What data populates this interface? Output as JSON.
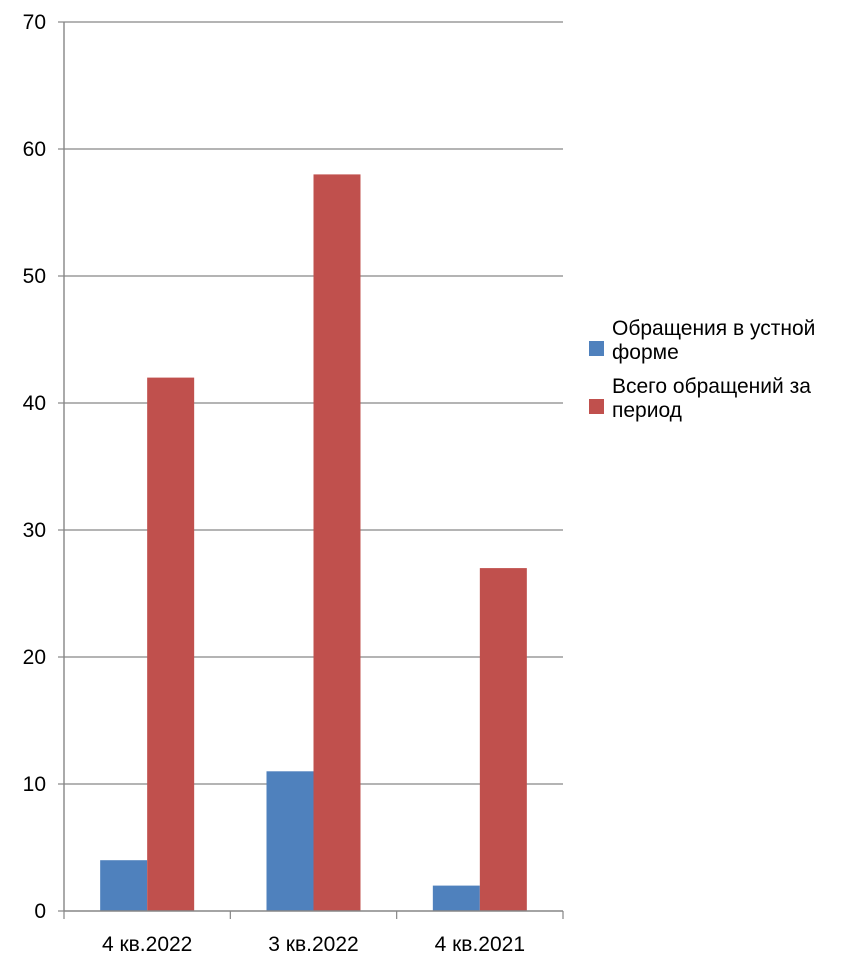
{
  "chart_data": {
    "type": "bar",
    "categories": [
      "4 кв.2022",
      "3 кв.2022",
      "4 кв.2021"
    ],
    "series": [
      {
        "name": "Обращения в устной форме",
        "legend_lines": [
          "Обращения в устной",
          "форме"
        ],
        "color": "#4F81BD",
        "values": [
          4,
          11,
          2
        ]
      },
      {
        "name": "Всего обращений за период",
        "legend_lines": [
          "Всего обращений за",
          "период"
        ],
        "color": "#C0504D",
        "values": [
          42,
          58,
          27
        ]
      }
    ],
    "ylim": [
      0,
      70
    ],
    "yticks": [
      "0",
      "10",
      "20",
      "30",
      "40",
      "50",
      "60",
      "70"
    ],
    "grid": true,
    "legend": "right",
    "title": "",
    "xlabel": "",
    "ylabel": ""
  }
}
